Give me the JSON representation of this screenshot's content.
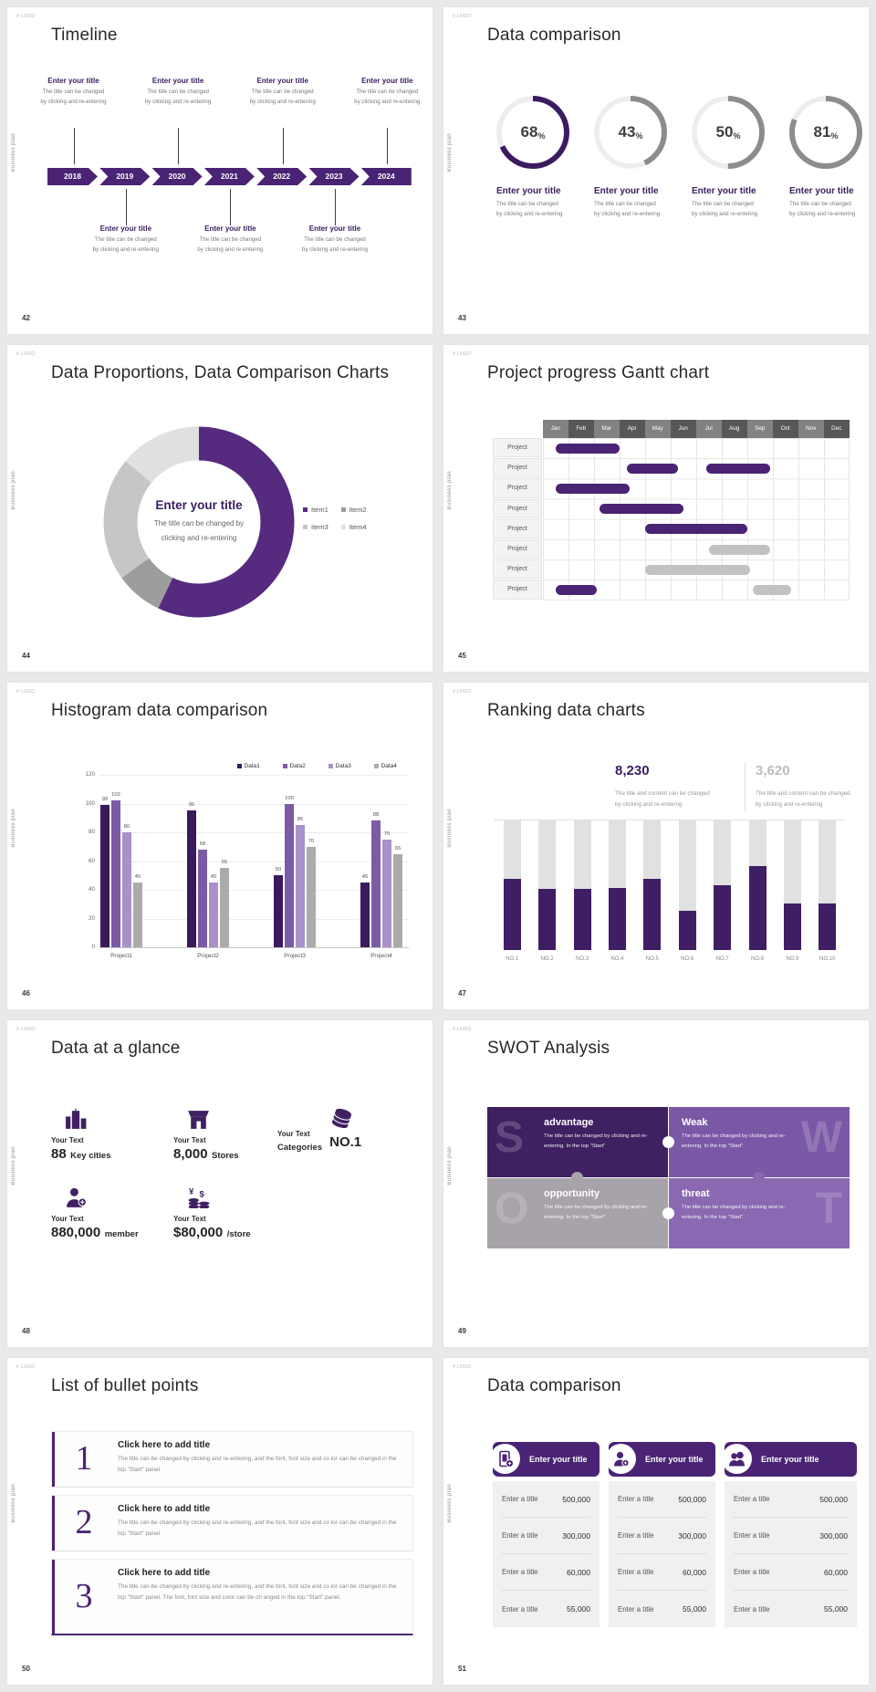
{
  "colors": {
    "purple": "#4a2374",
    "deep": "#3b2060",
    "donut_purple": "#562a7f",
    "gray_bar": "#c2c2c2",
    "rank_purple": "#3f1e63"
  },
  "chrome": {
    "logo_mark": "# LOGO",
    "side_label": "Business plan"
  },
  "slides": [
    {
      "number": "42",
      "type": "timeline",
      "title": "Timeline",
      "years": [
        "2018",
        "2019",
        "2020",
        "2021",
        "2022",
        "2023",
        "2024"
      ],
      "entry_title": "Enter your title",
      "entry_desc_lines": [
        "The title can be changed",
        "by clicking and re-entering"
      ],
      "top_indices": [
        0,
        2,
        4,
        6
      ],
      "bottom_indices": [
        1,
        3,
        5
      ]
    },
    {
      "number": "43",
      "type": "rings",
      "title": "Data comparison",
      "entry_title": "Enter your title",
      "entry_desc_lines": [
        "The title can be changed",
        "by clicking and re-entering"
      ],
      "rings": [
        {
          "pct": 68,
          "color": "#3b1b60"
        },
        {
          "pct": 43,
          "color": "#8c8c8c"
        },
        {
          "pct": 50,
          "color": "#8c8c8c"
        },
        {
          "pct": 81,
          "color": "#8c8c8c"
        }
      ]
    },
    {
      "number": "44",
      "type": "donut",
      "title": "Data Proportions, Data Comparison Charts",
      "center_title": "Enter your title",
      "center_desc_lines": [
        "The title can be changed by",
        "clicking and re-entering"
      ],
      "segments": [
        {
          "label": "Item1",
          "value": 57,
          "color": "#562a7f"
        },
        {
          "label": "Item2",
          "value": 8,
          "color": "#9c9c9c"
        },
        {
          "label": "Item3",
          "value": 21,
          "color": "#c6c6c6"
        },
        {
          "label": "Item4",
          "value": 14,
          "color": "#e0e0e0"
        }
      ]
    },
    {
      "number": "45",
      "type": "gantt",
      "title": "Project progress Gantt chart",
      "row_label": "Project",
      "months": [
        "Jan",
        "Feb",
        "Mar",
        "Apr",
        "May",
        "Jun",
        "Jul",
        "Aug",
        "Sep",
        "Oct",
        "Nov",
        "Dec"
      ],
      "bars": [
        {
          "row": 0,
          "start": 0.5,
          "end": 3.0,
          "color": "purple"
        },
        {
          "row": 1,
          "start": 3.3,
          "end": 5.3,
          "color": "purple"
        },
        {
          "row": 1,
          "start": 6.4,
          "end": 8.9,
          "color": "purple"
        },
        {
          "row": 2,
          "start": 0.5,
          "end": 3.4,
          "color": "purple"
        },
        {
          "row": 3,
          "start": 2.2,
          "end": 5.5,
          "color": "purple"
        },
        {
          "row": 4,
          "start": 4.0,
          "end": 8.0,
          "color": "purple"
        },
        {
          "row": 5,
          "start": 6.5,
          "end": 8.9,
          "color": "gray"
        },
        {
          "row": 6,
          "start": 4.0,
          "end": 8.1,
          "color": "gray"
        },
        {
          "row": 7,
          "start": 0.5,
          "end": 2.1,
          "color": "purple"
        },
        {
          "row": 7,
          "start": 8.2,
          "end": 9.7,
          "color": "gray"
        }
      ]
    },
    {
      "number": "46",
      "type": "histogram",
      "title": "Histogram data comparison",
      "categories": [
        "Project1",
        "Project2",
        "Project3",
        "Project4"
      ],
      "yticks": [
        0,
        20,
        40,
        60,
        80,
        100,
        120
      ],
      "ymax": 120,
      "series": [
        {
          "name": "Data1",
          "color": "#3a1a5c",
          "values": [
            99,
            95,
            50,
            45
          ]
        },
        {
          "name": "Data2",
          "color": "#7b5ca4",
          "values": [
            102,
            68,
            100,
            88
          ]
        },
        {
          "name": "Data3",
          "color": "#a991c9",
          "values": [
            80,
            45,
            85,
            75
          ]
        },
        {
          "name": "Data4",
          "color": "#ababab",
          "values": [
            45,
            55,
            70,
            65
          ]
        }
      ]
    },
    {
      "number": "47",
      "type": "ranking",
      "title": "Ranking data charts",
      "stat1": {
        "value": "8,230",
        "desc_lines": [
          "The title and content can be changed",
          "by clicking and re-entering"
        ]
      },
      "stat2": {
        "value": "3,620",
        "desc_lines": [
          "The title and content can be changed",
          "by clicking and re-entering"
        ]
      },
      "categories": [
        "NO.1",
        "NO.2",
        "NO.3",
        "NO.4",
        "NO.5",
        "NO.6",
        "NO.7",
        "NO.8",
        "NO.9",
        "NO.10"
      ],
      "values": [
        55,
        47,
        47,
        48,
        55,
        30,
        50,
        65,
        36,
        36
      ]
    },
    {
      "number": "48",
      "type": "stats",
      "title": "Data at a glance",
      "items": [
        {
          "icon": "buildings-icon",
          "label": "Your Text",
          "big": "88",
          "small": "Key cities"
        },
        {
          "icon": "store-icon",
          "label": "Your Text",
          "big": "8,000",
          "small": "Stores"
        },
        {
          "icon": "database-icon",
          "label": "Your Text",
          "prefix": "Categories",
          "big": "NO.1"
        },
        {
          "icon": "person-icon",
          "label": "Your Text",
          "big": "880,000",
          "small": "member"
        },
        {
          "icon": "coins-icon",
          "label": "Your Text",
          "big": "$80,000",
          "small": "/store"
        }
      ]
    },
    {
      "number": "49",
      "type": "swot",
      "title": "SWOT Analysis",
      "pieces": [
        {
          "letter": "S",
          "word": "advantage",
          "color": "#3f2061",
          "letter_side": "left",
          "desc": "The title can be changed by clicking and re-entering. In the top \"Start\""
        },
        {
          "letter": "W",
          "word": "Weak",
          "color": "#7b58a6",
          "letter_side": "right",
          "desc": "The title can be changed by clicking and re-entering. In the top \"Start\""
        },
        {
          "letter": "O",
          "word": "opportunity",
          "color": "#a7a3a8",
          "letter_side": "left",
          "desc": "The title can be changed by clicking and re-entering. In the top \"Start\""
        },
        {
          "letter": "T",
          "word": "threat",
          "color": "#8a68b2",
          "letter_side": "right",
          "desc": "The title can be changed by clicking and re-entering. In the top \"Start\""
        }
      ]
    },
    {
      "number": "50",
      "type": "bullets",
      "title": "List of bullet points",
      "items": [
        {
          "num": "1",
          "title": "Click here to add title",
          "body": "The title can be changed by clicking and re-entering, and the font, font size and co lor can be changed in the top \"Start\" panel"
        },
        {
          "num": "2",
          "title": "Click here to add title",
          "body": "The title can be changed by clicking and re-entering, and the font, font size and co lor can be changed in the top \"Start\" panel"
        },
        {
          "num": "3",
          "title": "Click here to add title",
          "body": "The title can be changed by clicking and re-entering, and the font, font size and co lor can be changed in the top \"Start\" panel. The font, font size and color can be ch anged in the top \"Start\" panel."
        }
      ]
    },
    {
      "number": "51",
      "type": "tables",
      "title": "Data comparison",
      "header_title": "Enter your title",
      "cards": [
        {
          "icon": "phone-plus-icon"
        },
        {
          "icon": "person-plus-icon"
        },
        {
          "icon": "people-icon"
        }
      ],
      "rows": [
        {
          "label": "Enter a title",
          "value": "500,000"
        },
        {
          "label": "Enter a title",
          "value": "300,000"
        },
        {
          "label": "Enter a title",
          "value": "60,000"
        },
        {
          "label": "Enter a title",
          "value": "55,000"
        }
      ]
    }
  ]
}
